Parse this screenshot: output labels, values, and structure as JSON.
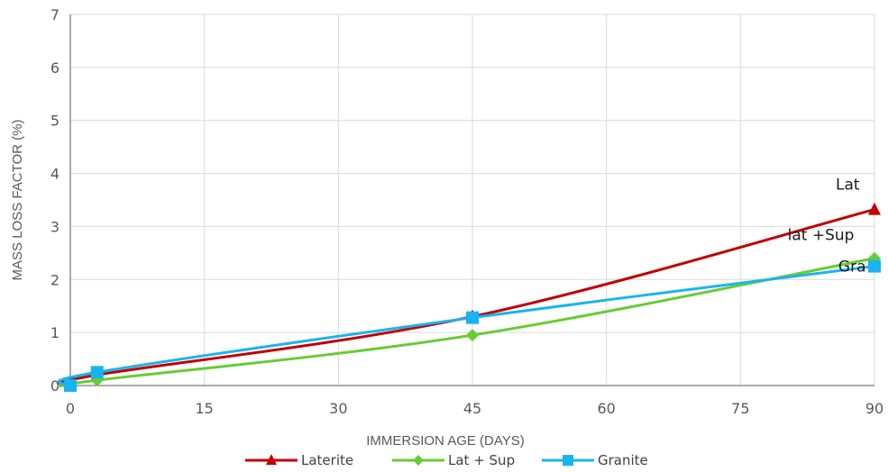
{
  "chart_data": {
    "type": "line",
    "title": "",
    "xlabel": "IMMERSION AGE (DAYS)",
    "ylabel": "MASS LOSS FACTOR (%)",
    "xlim": [
      0,
      90
    ],
    "ylim": [
      0,
      7
    ],
    "x_ticks": [
      0,
      15,
      30,
      45,
      60,
      75,
      90
    ],
    "y_ticks": [
      0,
      1,
      2,
      3,
      4,
      5,
      6,
      7
    ],
    "grid": true,
    "legend_position": "bottom",
    "x": [
      0,
      3,
      45,
      90
    ],
    "series": [
      {
        "name": "Laterite",
        "color": "#c00000",
        "marker": "triangle",
        "values": [
          0,
          0.2,
          1.3,
          3.32
        ]
      },
      {
        "name": "Lat + Sup",
        "color": "#66cc33",
        "marker": "diamond",
        "values": [
          0,
          0.1,
          0.95,
          2.4
        ]
      },
      {
        "name": "Granite",
        "color": "#19b4f0",
        "marker": "square",
        "values": [
          0,
          0.25,
          1.28,
          2.25
        ]
      }
    ],
    "annotations": [
      {
        "text": "Lat",
        "x": 87,
        "y": 3.8
      },
      {
        "text": "lat +Sup",
        "x": 84,
        "y": 2.85
      },
      {
        "text": "Gra",
        "x": 87.5,
        "y": 2.25
      }
    ]
  }
}
